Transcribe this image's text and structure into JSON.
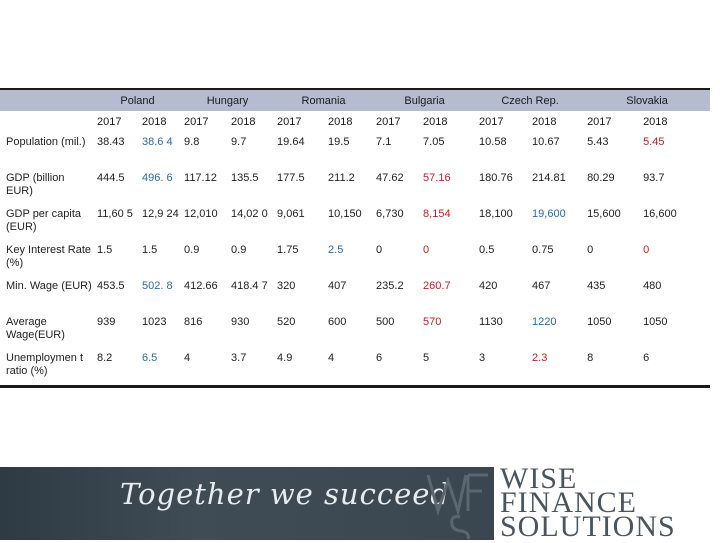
{
  "countries": [
    "Poland",
    "Hungary",
    "Romania",
    "Bulgaria",
    "Czech Rep.",
    "Slovakia"
  ],
  "years": [
    "2017",
    "2018",
    "2017",
    "2018",
    "2017",
    "2018",
    "2017",
    "2018",
    "2017",
    "2018",
    "2017",
    "2018"
  ],
  "rows": [
    {
      "label": "Population (mil.)",
      "values": [
        "38.43",
        "38.6 4",
        "9.8",
        "9.7",
        "19.64",
        "19.5",
        "7.1",
        "7.05",
        "10.58",
        "10.67",
        "5.43",
        "5.45"
      ]
    },
    {
      "label": "GDP (billion EUR)",
      "values": [
        "444.5",
        "496. 6",
        "117.12",
        "135.5",
        "177.5",
        "211.2",
        "47.62",
        "57.16",
        "180.76",
        "214.81",
        "80.29",
        "93.7"
      ]
    },
    {
      "label": "GDP per capita (EUR)",
      "values": [
        "11,60 5",
        "12,9 24",
        "12,010",
        "14,02 0",
        "9,061",
        "10,150",
        "6,730",
        "8,154",
        "18,100",
        "19,600",
        "15,600",
        "16,600"
      ]
    },
    {
      "label": "Key Interest Rate (%)",
      "values": [
        "1.5",
        "1.5",
        "0.9",
        "0.9",
        "1.75",
        "2.5",
        "0",
        "0",
        "0.5",
        "0.75",
        "0",
        "0"
      ]
    },
    {
      "label": "Min. Wage (EUR)",
      "values": [
        "453.5",
        "502. 8",
        "412.66",
        "418.4 7",
        "320",
        "407",
        "235.2",
        "260.7",
        "420",
        "467",
        "435",
        "480"
      ]
    },
    {
      "label": "Average Wage(EUR)",
      "values": [
        "939",
        "1023",
        "816",
        "930",
        "520",
        "600",
        "500",
        "570",
        "1130",
        "1220",
        "1050",
        "1050"
      ]
    },
    {
      "label": "Unemploymen t ratio (%)",
      "values": [
        "8.2",
        "6.5",
        "4",
        "3.7",
        "4.9",
        "4",
        "6",
        "5",
        "3",
        "2.3",
        "8",
        "6"
      ]
    }
  ],
  "footer": {
    "slogan": "Together we succeed",
    "logo_monogram": "WFS",
    "logo_line1": "WISE",
    "logo_line2": "FINANCE",
    "logo_line3": "SOLUTIONS"
  },
  "colors": {
    "header_band": "#b5bcd0",
    "highlight_blue": "#2b6aa6",
    "highlight_red": "#c02020",
    "footer_band": "#3a4650"
  }
}
